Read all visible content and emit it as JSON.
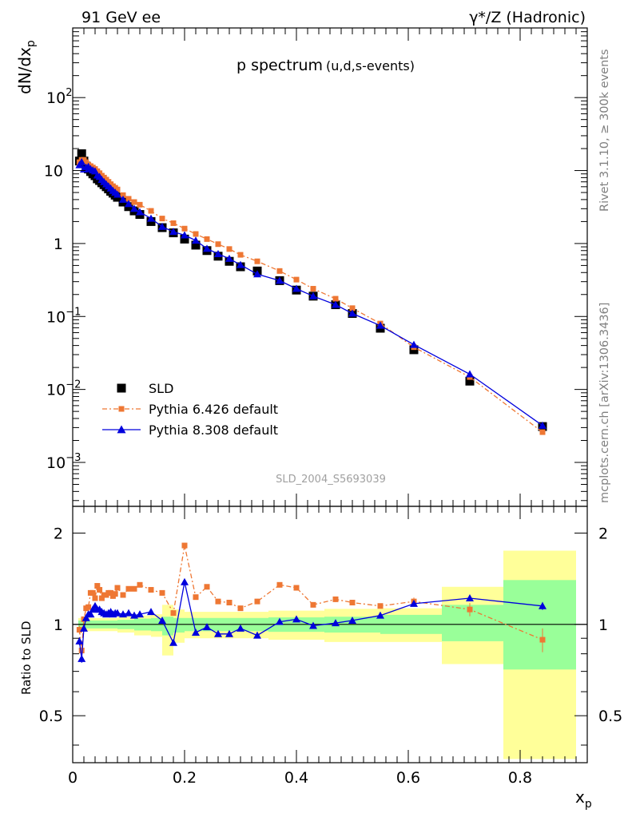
{
  "header": {
    "left": "91 GeV ee",
    "right": "γ*/Z (Hadronic)",
    "side_top": "Rivet 3.1.10, ≥ 300k events",
    "side_bottom": "mcplots.cern.ch [arXiv:1306.3436]"
  },
  "chart_data": [
    {
      "type": "scatter",
      "scale": "log",
      "title": "p spectrum",
      "title_sub": "(u,d,s-events)",
      "ylabel_main": "dN/dx",
      "ylabel_sub": "p",
      "watermark": "SLD_2004_S5693039",
      "ylim": [
        0.00025,
        900
      ],
      "yticks": [
        {
          "v": 100,
          "base": "10",
          "exp": "2"
        },
        {
          "v": 10,
          "base": "10",
          "exp": ""
        },
        {
          "v": 1,
          "base": "1",
          "exp": ""
        },
        {
          "v": 0.1,
          "base": "10",
          "exp": "−1"
        },
        {
          "v": 0.01,
          "base": "10",
          "exp": "−2"
        },
        {
          "v": 0.001,
          "base": "10",
          "exp": "−3"
        }
      ],
      "x": [
        0.012,
        0.016,
        0.02,
        0.024,
        0.028,
        0.032,
        0.036,
        0.04,
        0.044,
        0.048,
        0.052,
        0.056,
        0.06,
        0.064,
        0.068,
        0.072,
        0.076,
        0.08,
        0.09,
        0.1,
        0.11,
        0.12,
        0.14,
        0.16,
        0.18,
        0.2,
        0.22,
        0.24,
        0.26,
        0.28,
        0.3,
        0.33,
        0.37,
        0.4,
        0.43,
        0.47,
        0.5,
        0.55,
        0.61,
        0.71,
        0.84
      ],
      "series": [
        {
          "name": "SLD",
          "marker": "square",
          "color": "#000000",
          "values": [
            13.5,
            17.0,
            13.5,
            11.5,
            10.5,
            9.7,
            9.0,
            8.5,
            7.7,
            7.3,
            6.8,
            6.4,
            6.0,
            5.6,
            5.2,
            4.9,
            4.6,
            4.3,
            3.7,
            3.2,
            2.8,
            2.5,
            2.0,
            1.65,
            1.4,
            1.15,
            0.95,
            0.8,
            0.67,
            0.57,
            0.48,
            0.42,
            0.31,
            0.23,
            0.19,
            0.145,
            0.11,
            0.069,
            0.035,
            0.013,
            0.0031
          ]
        },
        {
          "name": "Pythia 6.426 default",
          "marker": "square",
          "color": "#ee7733",
          "dash": "6,3,2,3",
          "values": [
            13.0,
            14.0,
            14.0,
            13.0,
            12.0,
            11.5,
            11.0,
            10.5,
            9.8,
            9.2,
            8.5,
            8.0,
            7.5,
            7.0,
            6.5,
            6.1,
            5.8,
            5.5,
            4.6,
            4.1,
            3.7,
            3.4,
            2.8,
            2.2,
            1.9,
            1.6,
            1.35,
            1.15,
            0.98,
            0.84,
            0.7,
            0.57,
            0.42,
            0.32,
            0.24,
            0.175,
            0.13,
            0.08,
            0.038,
            0.0148,
            0.0026
          ]
        },
        {
          "name": "Pythia 8.308 default",
          "marker": "triangle",
          "color": "#0000dd",
          "values": [
            11.9,
            13.1,
            10.4,
            11.0,
            11.3,
            10.5,
            10.1,
            9.8,
            8.6,
            8.2,
            7.5,
            7.0,
            6.5,
            6.1,
            5.7,
            5.3,
            5.0,
            4.7,
            4.0,
            3.5,
            3.0,
            2.7,
            2.2,
            1.7,
            1.45,
            1.3,
            1.1,
            0.85,
            0.72,
            0.62,
            0.51,
            0.38,
            0.31,
            0.24,
            0.19,
            0.145,
            0.11,
            0.075,
            0.041,
            0.0162,
            0.0032
          ]
        }
      ],
      "legend": [
        {
          "name": "SLD",
          "marker": "square"
        },
        {
          "name": "Pythia 6.426 default",
          "marker": "square"
        },
        {
          "name": "Pythia 8.308 default",
          "marker": "triangle"
        }
      ]
    },
    {
      "type": "line",
      "scale": "log",
      "ylabel": "Ratio to SLD",
      "xlabel_main": "x",
      "xlabel_sub": "p",
      "xlim": [
        0,
        0.92
      ],
      "ylim": [
        0.35,
        2.45
      ],
      "xticks": [
        "0",
        "0.2",
        "0.4",
        "0.6",
        "0.8"
      ],
      "xtick_values": [
        0,
        0.2,
        0.4,
        0.6,
        0.8
      ],
      "yticks": [
        "0.5",
        "1",
        "2"
      ],
      "ytick_values": [
        0.5,
        1,
        2
      ],
      "bands": [
        {
          "x0": 0.01,
          "x1": 0.04,
          "yel_lo": 0.95,
          "yel_hi": 1.05,
          "grn_lo": 0.97,
          "grn_hi": 1.03
        },
        {
          "x0": 0.04,
          "x1": 0.08,
          "yel_lo": 0.95,
          "yel_hi": 1.05,
          "grn_lo": 0.97,
          "grn_hi": 1.03
        },
        {
          "x0": 0.08,
          "x1": 0.11,
          "yel_lo": 0.94,
          "yel_hi": 1.06,
          "grn_lo": 0.965,
          "grn_hi": 1.035
        },
        {
          "x0": 0.11,
          "x1": 0.14,
          "yel_lo": 0.92,
          "yel_hi": 1.07,
          "grn_lo": 0.955,
          "grn_hi": 1.045
        },
        {
          "x0": 0.14,
          "x1": 0.16,
          "yel_lo": 0.91,
          "yel_hi": 1.08,
          "grn_lo": 0.95,
          "grn_hi": 1.05
        },
        {
          "x0": 0.16,
          "x1": 0.18,
          "yel_lo": 0.79,
          "yel_hi": 1.16,
          "grn_lo": 0.92,
          "grn_hi": 1.06
        },
        {
          "x0": 0.18,
          "x1": 0.2,
          "yel_lo": 0.87,
          "yel_hi": 1.12,
          "grn_lo": 0.94,
          "grn_hi": 1.05
        },
        {
          "x0": 0.2,
          "x1": 0.35,
          "yel_lo": 0.9,
          "yel_hi": 1.1,
          "grn_lo": 0.95,
          "grn_hi": 1.05
        },
        {
          "x0": 0.35,
          "x1": 0.45,
          "yel_lo": 0.89,
          "yel_hi": 1.11,
          "grn_lo": 0.945,
          "grn_hi": 1.055
        },
        {
          "x0": 0.45,
          "x1": 0.55,
          "yel_lo": 0.875,
          "yel_hi": 1.125,
          "grn_lo": 0.94,
          "grn_hi": 1.06
        },
        {
          "x0": 0.55,
          "x1": 0.66,
          "yel_lo": 0.875,
          "yel_hi": 1.13,
          "grn_lo": 0.93,
          "grn_hi": 1.075
        },
        {
          "x0": 0.66,
          "x1": 0.77,
          "yel_lo": 0.74,
          "yel_hi": 1.33,
          "grn_lo": 0.88,
          "grn_hi": 1.16
        },
        {
          "x0": 0.77,
          "x1": 0.9,
          "yel_lo": 0.36,
          "yel_hi": 1.75,
          "grn_lo": 0.71,
          "grn_hi": 1.4
        }
      ],
      "x": [
        0.012,
        0.016,
        0.02,
        0.024,
        0.028,
        0.032,
        0.036,
        0.04,
        0.044,
        0.048,
        0.052,
        0.056,
        0.06,
        0.064,
        0.068,
        0.072,
        0.076,
        0.08,
        0.09,
        0.1,
        0.11,
        0.12,
        0.14,
        0.16,
        0.18,
        0.2,
        0.22,
        0.24,
        0.26,
        0.28,
        0.3,
        0.33,
        0.37,
        0.4,
        0.43,
        0.47,
        0.5,
        0.55,
        0.61,
        0.71,
        0.84
      ],
      "series": [
        {
          "name": "Pythia 6.426 default",
          "marker": "square",
          "color": "#ee7733",
          "dash": "6,3,2,3",
          "values": [
            0.96,
            0.82,
            1.04,
            1.13,
            1.14,
            1.27,
            1.27,
            1.22,
            1.34,
            1.3,
            1.22,
            1.25,
            1.25,
            1.27,
            1.27,
            1.24,
            1.26,
            1.32,
            1.25,
            1.31,
            1.31,
            1.35,
            1.3,
            1.27,
            1.09,
            1.82,
            1.23,
            1.33,
            1.19,
            1.18,
            1.13,
            1.19,
            1.35,
            1.32,
            1.16,
            1.21,
            1.18,
            1.15,
            1.19,
            1.12,
            0.89
          ],
          "errs": [
            0.03,
            0.03,
            0.02,
            0.02,
            0.02,
            0.02,
            0.02,
            0.02,
            0.02,
            0.02,
            0.02,
            0.02,
            0.02,
            0.02,
            0.02,
            0.02,
            0.02,
            0.02,
            0.02,
            0.02,
            0.02,
            0.02,
            0.02,
            0.02,
            0.02,
            0.02,
            0.02,
            0.02,
            0.02,
            0.02,
            0.02,
            0.02,
            0.02,
            0.02,
            0.02,
            0.02,
            0.02,
            0.02,
            0.03,
            0.05,
            0.09
          ]
        },
        {
          "name": "Pythia 8.308 default",
          "marker": "triangle",
          "color": "#0000dd",
          "values": [
            0.88,
            0.77,
            0.97,
            1.05,
            1.08,
            1.08,
            1.12,
            1.15,
            1.12,
            1.12,
            1.1,
            1.09,
            1.08,
            1.09,
            1.1,
            1.08,
            1.09,
            1.09,
            1.08,
            1.09,
            1.07,
            1.08,
            1.1,
            1.03,
            0.87,
            1.38,
            0.94,
            0.98,
            0.93,
            0.93,
            0.97,
            0.92,
            1.02,
            1.04,
            0.99,
            1.01,
            1.03,
            1.07,
            1.17,
            1.22,
            1.15
          ],
          "errs": [
            0.03,
            0.03,
            0.02,
            0.02,
            0.02,
            0.02,
            0.02,
            0.02,
            0.02,
            0.02,
            0.02,
            0.02,
            0.02,
            0.02,
            0.02,
            0.02,
            0.02,
            0.02,
            0.02,
            0.02,
            0.02,
            0.02,
            0.02,
            0.02,
            0.02,
            0.02,
            0.02,
            0.02,
            0.02,
            0.02,
            0.02,
            0.02,
            0.02,
            0.02,
            0.02,
            0.02,
            0.02,
            0.02,
            0.02,
            0.02,
            0.03
          ]
        }
      ]
    }
  ]
}
